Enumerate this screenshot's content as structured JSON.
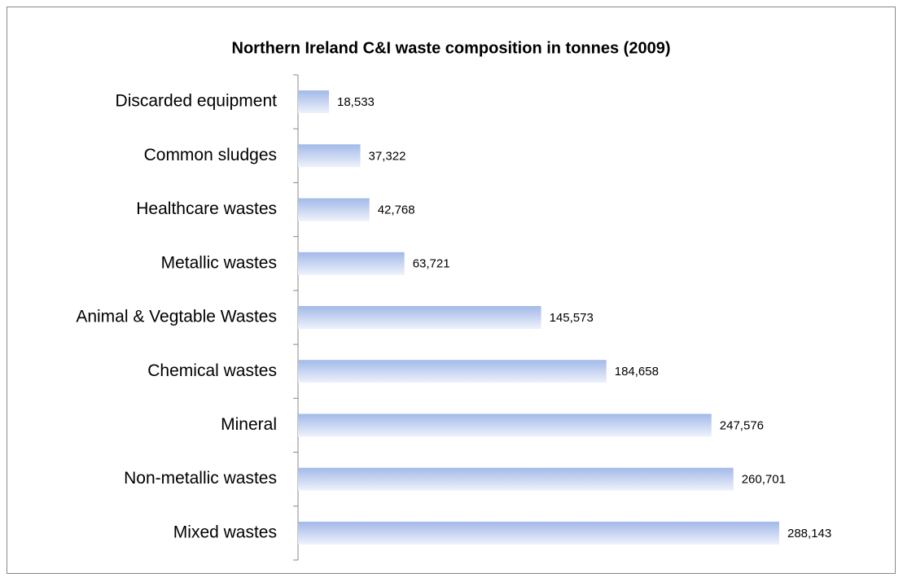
{
  "chart_data": {
    "type": "bar",
    "orientation": "horizontal",
    "title": "Northern Ireland C&I waste composition in tonnes (2009)",
    "categories": [
      "Discarded equipment",
      "Common sludges",
      "Healthcare wastes",
      "Metallic wastes",
      "Animal & Vegtable Wastes",
      "Chemical wastes",
      "Mineral",
      "Non-metallic wastes",
      "Mixed wastes"
    ],
    "values": [
      18533,
      37322,
      42768,
      63721,
      145573,
      184658,
      247576,
      260701,
      288143
    ],
    "value_labels": [
      "18,533",
      "37,322",
      "42,768",
      "63,721",
      "145,573",
      "184,658",
      "247,576",
      "260,701",
      "288,143"
    ],
    "color": "#a3b9e8"
  }
}
